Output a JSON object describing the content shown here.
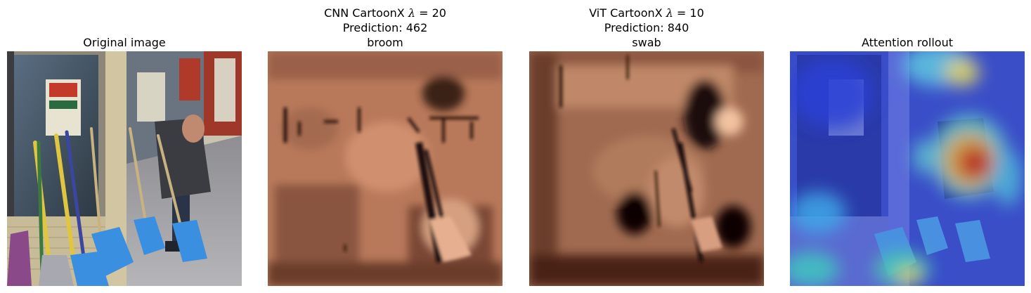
{
  "panels": [
    {
      "title_lines": [
        "Original image"
      ]
    },
    {
      "title_prefix": "CNN CartoonX ",
      "lambda_symbol": "λ",
      "lambda_value": " = 20",
      "title_lines": [
        "Prediction: 462",
        "broom"
      ]
    },
    {
      "title_prefix": "ViT CartoonX ",
      "lambda_symbol": "λ",
      "lambda_value": " = 10",
      "title_lines": [
        "Prediction: 840",
        "swab"
      ]
    },
    {
      "title_lines": [
        "Attention rollout"
      ]
    }
  ],
  "colors": {
    "shovel_blue": "#3a8fe0",
    "cartoon_copper": "#b8795a",
    "heat_red": "#cc1a10",
    "heat_blue": "#2b3fd6"
  }
}
